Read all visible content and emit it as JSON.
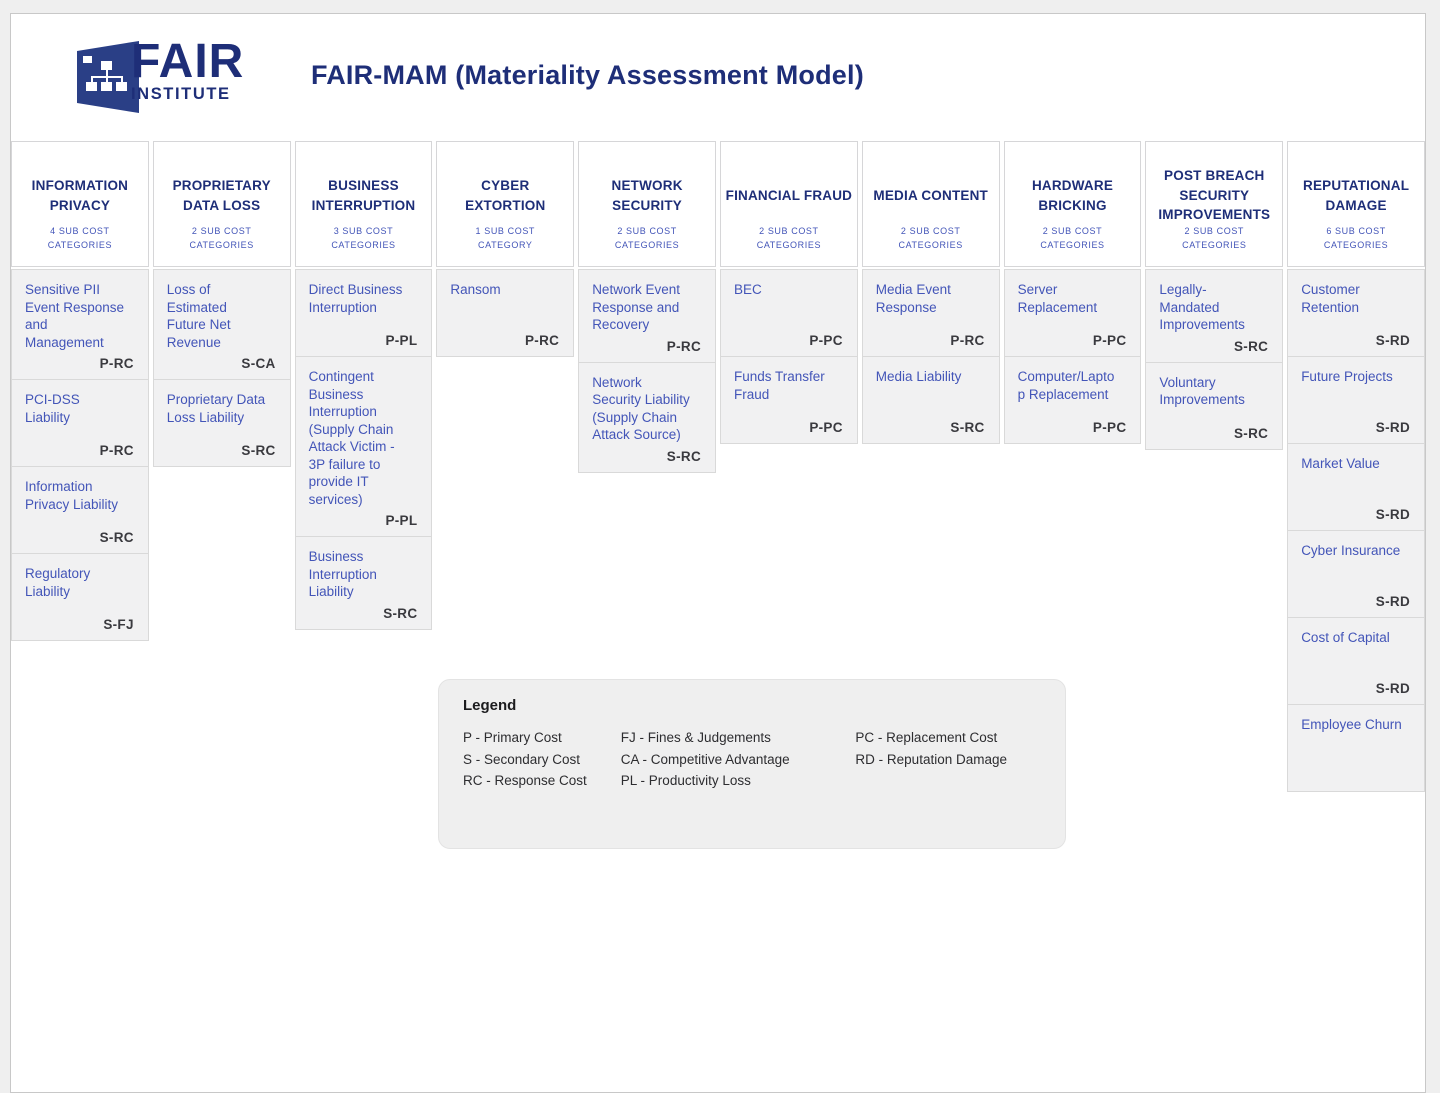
{
  "page": {
    "title": "FAIR-MAM (Materiality Assessment Model)"
  },
  "logo": {
    "brand": "FAIR",
    "suffix": "INSTITUTE"
  },
  "columns": [
    {
      "title": "INFORMATION PRIVACY",
      "subtitle": "4 SUB COST CATEGORIES",
      "cells": [
        {
          "label": "Sensitive PII Event Response and Management",
          "code": "P-RC"
        },
        {
          "label": "PCI-DSS Liability",
          "code": "P-RC"
        },
        {
          "label": "Information Privacy Liability",
          "code": "S-RC"
        },
        {
          "label": "Regulatory Liability",
          "code": "S-FJ"
        }
      ]
    },
    {
      "title": "PROPRIETARY DATA LOSS",
      "subtitle": "2 SUB COST CATEGORIES",
      "cells": [
        {
          "label": "Loss of Estimated Future Net Revenue",
          "code": "S-CA"
        },
        {
          "label": "Proprietary Data Loss Liability",
          "code": "S-RC"
        }
      ]
    },
    {
      "title": "BUSINESS INTERRUPTION",
      "subtitle": "3 SUB COST CATEGORIES",
      "cells": [
        {
          "label": "Direct Business Interruption",
          "code": "P-PL"
        },
        {
          "label": "Contingent Business Interruption (Supply Chain Attack Victim - 3P failure to provide IT services)",
          "code": "P-PL"
        },
        {
          "label": "Business Interruption Liability",
          "code": "S-RC"
        }
      ]
    },
    {
      "title": "CYBER EXTORTION",
      "subtitle": "1 SUB COST CATEGORY",
      "cells": [
        {
          "label": "Ransom",
          "code": "P-RC"
        }
      ]
    },
    {
      "title": "NETWORK SECURITY",
      "subtitle": "2 SUB COST CATEGORIES",
      "cells": [
        {
          "label": "Network Event Response and Recovery",
          "code": "P-RC"
        },
        {
          "label": "Network Security Liability (Supply Chain Attack Source)",
          "code": "S-RC"
        }
      ]
    },
    {
      "title": "FINANCIAL FRAUD",
      "subtitle": "2 SUB COST CATEGORIES",
      "cells": [
        {
          "label": "BEC",
          "code": "P-PC"
        },
        {
          "label": "Funds Transfer Fraud",
          "code": "P-PC"
        }
      ]
    },
    {
      "title": "MEDIA CONTENT",
      "subtitle": "2 SUB COST CATEGORIES",
      "cells": [
        {
          "label": "Media Event Response",
          "code": "P-RC"
        },
        {
          "label": "Media Liability",
          "code": "S-RC"
        }
      ]
    },
    {
      "title": "HARDWARE BRICKING",
      "subtitle": "2 SUB COST CATEGORIES",
      "cells": [
        {
          "label": "Server Replacement",
          "code": "P-PC"
        },
        {
          "label": "Computer/Laptop Replacement",
          "code": "P-PC"
        }
      ]
    },
    {
      "title": "POST BREACH SECURITY IMPROVEMENTS",
      "subtitle": "2 SUB COST CATEGORIES",
      "cells": [
        {
          "label": "Legally-Mandated Improvements",
          "code": "S-RC"
        },
        {
          "label": "Voluntary Improvements",
          "code": "S-RC"
        }
      ]
    },
    {
      "title": "REPUTATIONAL DAMAGE",
      "subtitle": "6 SUB COST CATEGORIES",
      "cells": [
        {
          "label": "Customer Retention",
          "code": "S-RD"
        },
        {
          "label": "Future Projects",
          "code": "S-RD"
        },
        {
          "label": "Market Value",
          "code": "S-RD"
        },
        {
          "label": "Cyber Insurance",
          "code": "S-RD"
        },
        {
          "label": "Cost of Capital",
          "code": "S-RD"
        },
        {
          "label": "Employee Churn",
          "code": ""
        }
      ]
    }
  ],
  "legend": {
    "title": "Legend",
    "columns": [
      [
        "P - Primary Cost",
        "S - Secondary Cost",
        "RC - Response Cost"
      ],
      [
        "FJ - Fines & Judgements",
        "CA - Competitive Advantage",
        "PL - Productivity Loss"
      ],
      [
        "PC - Replacement Cost",
        "RD - Reputation Damage"
      ]
    ]
  },
  "colors": {
    "navy": "#1e2e78",
    "cellText": "#4355b8",
    "codeText": "#3a3a3f",
    "cellBg": "#f1f1f2",
    "border": "#d9d9d9",
    "legendBg": "#efefef",
    "legendText": "#2d2d30"
  }
}
